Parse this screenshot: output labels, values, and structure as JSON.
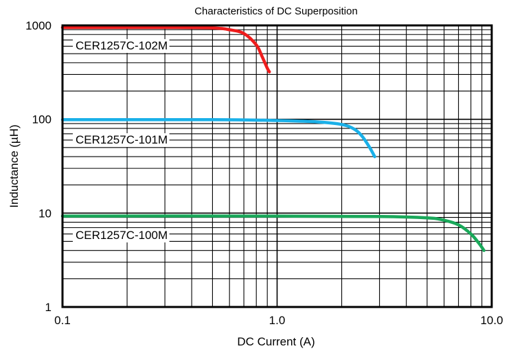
{
  "chart_data": {
    "type": "line",
    "title": "Characteristics of DC Superposition",
    "xlabel": "DC Current (A)",
    "ylabel": "Inductance (µH)",
    "xscale": "log",
    "yscale": "log",
    "xlim": [
      0.1,
      10
    ],
    "ylim": [
      1,
      1000
    ],
    "grid": true,
    "x_tick_labels": [
      {
        "value": 0.1,
        "label": "0.1"
      },
      {
        "value": 1,
        "label": "1.0"
      },
      {
        "value": 10,
        "label": "10.0"
      }
    ],
    "y_tick_labels": [
      {
        "value": 1,
        "label": "1"
      },
      {
        "value": 10,
        "label": "10"
      },
      {
        "value": 100,
        "label": "100"
      },
      {
        "value": 1000,
        "label": "1000"
      }
    ],
    "series": [
      {
        "name": "CER1257C-102M",
        "color": "#ee1c1c",
        "x": [
          0.1,
          0.3,
          0.5,
          0.6,
          0.7,
          0.8,
          0.85,
          0.9,
          0.92
        ],
        "y": [
          950,
          950,
          940,
          900,
          820,
          620,
          470,
          350,
          320
        ]
      },
      {
        "name": "CER1257C-101M",
        "color": "#1ab0e8",
        "x": [
          0.1,
          0.5,
          1.0,
          1.5,
          2.0,
          2.3,
          2.5,
          2.7,
          2.85
        ],
        "y": [
          99,
          99,
          97,
          94,
          88,
          78,
          65,
          50,
          40
        ]
      },
      {
        "name": "CER1257C-100M",
        "color": "#1aa85a",
        "x": [
          0.1,
          1.0,
          3.0,
          5.0,
          6.0,
          7.0,
          8.0,
          8.7,
          9.2
        ],
        "y": [
          9.3,
          9.3,
          9.2,
          8.9,
          8.4,
          7.5,
          6.0,
          4.8,
          4.0
        ]
      }
    ]
  }
}
